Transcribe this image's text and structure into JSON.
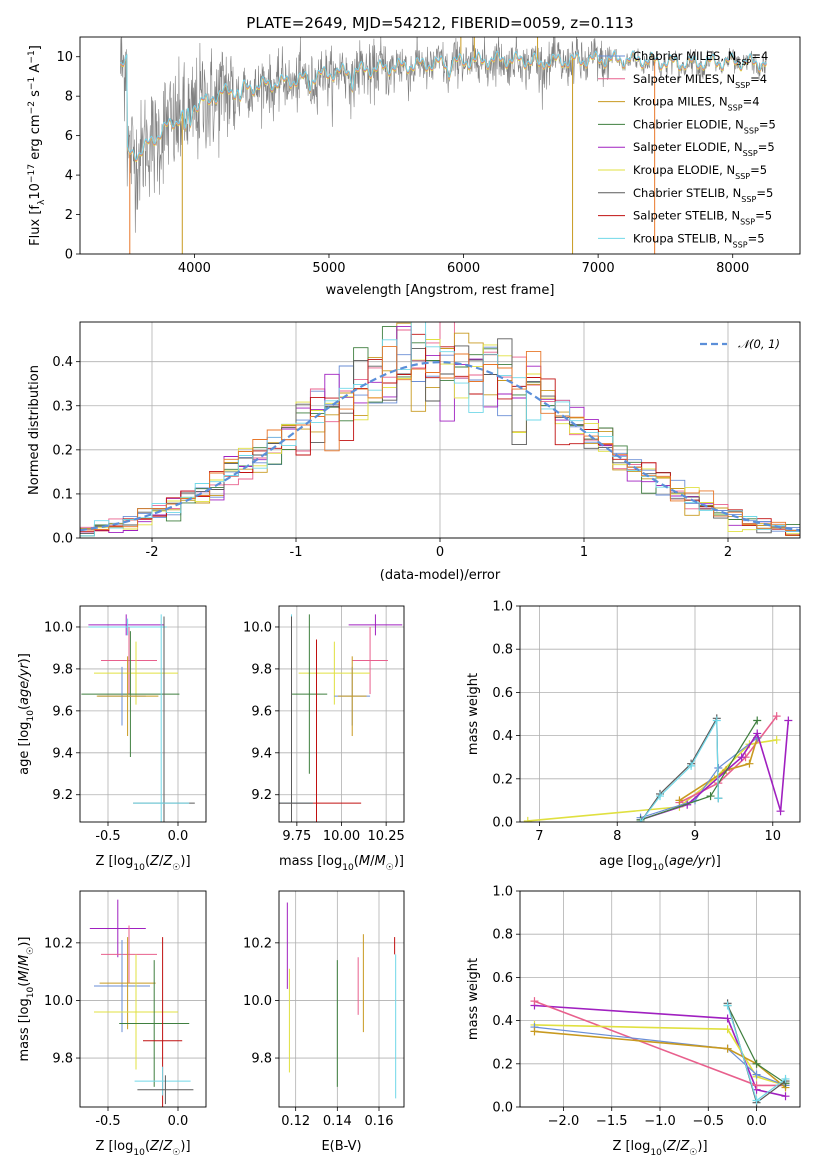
{
  "figure": {
    "title": "PLATE=2649, MJD=54212, FIBERID=0059, z=0.113"
  },
  "colors": {
    "Chabrier MILES": "#6a8ed6",
    "Salpeter MILES": "#e8608d",
    "Kroupa MILES": "#c89a20",
    "Chabrier ELODIE": "#3f7f3f",
    "Salpeter ELODIE": "#a020c0",
    "Kroupa ELODIE": "#e0e040",
    "Chabrier STELIB": "#5a5a5a",
    "Salpeter STELIB": "#c01010",
    "Kroupa STELIB": "#70d8e8",
    "orange": "#e8772a",
    "pink": "#e880b8",
    "olive": "#b8d850",
    "normal_curve": "#5b8fd9",
    "grid": "#b0b0b0"
  },
  "chart_data": [
    {
      "id": "spectrum",
      "type": "line",
      "title": "PLATE=2649, MJD=54212, FIBERID=0059, z=0.113",
      "xlabel": "wavelength [Angstrom, rest frame]",
      "ylabel": "Flux [f_λ 10^-17 erg cm^-2 s^-1 A^-1]",
      "xlim": [
        3150,
        8500
      ],
      "ylim": [
        0,
        11
      ],
      "xticks": [
        4000,
        5000,
        6000,
        7000,
        8000
      ],
      "yticks": [
        0,
        2,
        4,
        6,
        8,
        10
      ],
      "grid": false,
      "legend_position": "top-right",
      "legend": [
        {
          "label": "Chabrier MILES",
          "nssp": "4"
        },
        {
          "label": "Salpeter MILES",
          "nssp": "4"
        },
        {
          "label": "Kroupa MILES",
          "nssp": "4"
        },
        {
          "label": "Chabrier ELODIE",
          "nssp": "5"
        },
        {
          "label": "Salpeter ELODIE",
          "nssp": "5"
        },
        {
          "label": "Kroupa ELODIE",
          "nssp": "5"
        },
        {
          "label": "Chabrier STELIB",
          "nssp": "5"
        },
        {
          "label": "Salpeter STELIB",
          "nssp": "5"
        },
        {
          "label": "Kroupa STELIB",
          "nssp": "5"
        }
      ],
      "continuum": {
        "x": [
          3500,
          3600,
          3700,
          3800,
          3900,
          4000,
          4200,
          4500,
          4800,
          5000,
          5300,
          5600,
          6000,
          6300,
          6600,
          7000,
          7300,
          7600,
          8000,
          8250
        ],
        "y": [
          5.0,
          5.1,
          5.8,
          6.4,
          6.9,
          7.5,
          8.1,
          8.5,
          8.8,
          9.1,
          9.3,
          9.5,
          9.7,
          9.8,
          9.7,
          9.8,
          9.8,
          9.6,
          9.7,
          9.6
        ]
      },
      "data_range": [
        3450,
        8250
      ],
      "model_range": [
        3450,
        8250
      ]
    },
    {
      "id": "residual-hist",
      "type": "step",
      "xlabel": "(data-model)/error",
      "ylabel": "Normed distribution",
      "xlim": [
        -2.5,
        2.5
      ],
      "ylim": [
        0,
        0.49
      ],
      "xticks": [
        -2,
        -1,
        0,
        1,
        2
      ],
      "yticks": [
        0,
        0.1,
        0.2,
        0.3,
        0.4
      ],
      "grid": true,
      "legend_position": "top-right",
      "legend": [
        {
          "label": "𝒩(0, 1)"
        }
      ],
      "bin_width": 0.1
    },
    {
      "id": "age-vs-Z",
      "type": "errorbar",
      "xlabel": "Z [log10(Z/Z☉)]",
      "ylabel": "age [log10(age/yr)]",
      "xlim": [
        -0.7,
        0.2
      ],
      "ylim": [
        9.07,
        10.1
      ],
      "xticks": [
        -0.5,
        0.0
      ],
      "yticks": [
        9.2,
        9.4,
        9.6,
        9.8,
        10.0
      ],
      "grid": true,
      "points": [
        {
          "series": "Salpeter ELODIE",
          "x": -0.37,
          "xerr": 0.27,
          "y": 10.01,
          "yerr": 0.05
        },
        {
          "series": "Kroupa STELIB",
          "x": -0.36,
          "xerr": 0.28,
          "y": 10.0,
          "yerr": 0.04
        },
        {
          "series": "Salpeter MILES",
          "x": -0.35,
          "xerr": 0.2,
          "y": 9.84,
          "yerr": 0.16
        },
        {
          "series": "Kroupa ELODIE",
          "x": -0.3,
          "xerr": 0.3,
          "y": 9.78,
          "yerr": 0.15
        },
        {
          "series": "Chabrier ELODIE",
          "x": -0.34,
          "xerr": 0.35,
          "y": 9.68,
          "yerr": 0.3
        },
        {
          "series": "Chabrier MILES",
          "x": -0.4,
          "xerr": 0.17,
          "y": 9.67,
          "yerr": 0.14
        },
        {
          "series": "Kroupa MILES",
          "x": -0.36,
          "xerr": 0.22,
          "y": 9.67,
          "yerr": 0.19
        },
        {
          "series": "Chabrier STELIB",
          "x": -0.1,
          "xerr": 0.22,
          "y": 9.16,
          "yerr": 0.89
        },
        {
          "series": "Kroupa STELIB",
          "x": -0.12,
          "xerr": 0.2,
          "y": 9.16,
          "yerr": 0.9
        }
      ]
    },
    {
      "id": "age-vs-mass",
      "type": "errorbar",
      "xlabel": "mass [log10(M/M☉)]",
      "ylabel": "",
      "xlim": [
        9.65,
        10.35
      ],
      "ylim": [
        9.07,
        10.1
      ],
      "xticks": [
        9.75,
        10.0,
        10.25
      ],
      "yticks": [
        9.2,
        9.4,
        9.6,
        9.8,
        10.0
      ],
      "grid": true,
      "points": [
        {
          "series": "Salpeter ELODIE",
          "x": 10.19,
          "xerr": 0.15,
          "y": 10.01,
          "yerr": 0.05
        },
        {
          "series": "Salpeter MILES",
          "x": 10.16,
          "xerr": 0.1,
          "y": 9.84,
          "yerr": 0.16
        },
        {
          "series": "Kroupa ELODIE",
          "x": 9.96,
          "xerr": 0.2,
          "y": 9.78,
          "yerr": 0.15
        },
        {
          "series": "Chabrier ELODIE",
          "x": 9.82,
          "xerr": 0.1,
          "y": 9.68,
          "yerr": 0.38
        },
        {
          "series": "Chabrier MILES",
          "x": 10.06,
          "xerr": 0.1,
          "y": 9.67,
          "yerr": 0.14
        },
        {
          "series": "Kroupa MILES",
          "x": 10.06,
          "xerr": 0.08,
          "y": 9.67,
          "yerr": 0.19
        },
        {
          "series": "Salpeter STELIB",
          "x": 9.86,
          "xerr": 0.25,
          "y": 9.16,
          "yerr": 0.78
        },
        {
          "series": "Kroupa STELIB",
          "x": 9.72,
          "xerr": 0.12,
          "y": 9.16,
          "yerr": 0.9
        },
        {
          "series": "Chabrier STELIB",
          "x": 9.72,
          "xerr": 0.12,
          "y": 9.16,
          "yerr": 0.89
        }
      ]
    },
    {
      "id": "massweight-vs-age",
      "type": "line",
      "xlabel": "age [log10(age/yr)]",
      "ylabel": "mass weight",
      "xlim": [
        6.75,
        10.35
      ],
      "ylim": [
        0,
        1.0
      ],
      "xticks": [
        7,
        8,
        9,
        10
      ],
      "yticks": [
        0.0,
        0.2,
        0.4,
        0.6,
        0.8,
        1.0
      ],
      "grid": true,
      "series": [
        {
          "name": "Kroupa ELODIE",
          "x": [
            6.85,
            8.8,
            9.25,
            9.7,
            10.05
          ],
          "y": [
            0.005,
            0.07,
            0.2,
            0.36,
            0.38
          ]
        },
        {
          "name": "Salpeter MILES",
          "x": [
            8.8,
            9.3,
            9.65,
            10.05
          ],
          "y": [
            0.09,
            0.18,
            0.3,
            0.49
          ]
        },
        {
          "name": "Kroupa MILES",
          "x": [
            8.8,
            9.4,
            9.7,
            9.8
          ],
          "y": [
            0.1,
            0.24,
            0.27,
            0.39
          ]
        },
        {
          "name": "Chabrier MILES",
          "x": [
            8.3,
            9.0,
            9.3,
            9.8
          ],
          "y": [
            0.02,
            0.1,
            0.25,
            0.39
          ]
        },
        {
          "name": "Salpeter ELODIE",
          "x": [
            8.3,
            8.9,
            9.6,
            9.8,
            10.1,
            10.2
          ],
          "y": [
            0.01,
            0.08,
            0.3,
            0.41,
            0.05,
            0.47
          ]
        },
        {
          "name": "Chabrier ELODIE",
          "x": [
            8.3,
            9.2,
            9.8
          ],
          "y": [
            0.01,
            0.12,
            0.47
          ]
        },
        {
          "name": "Chabrier STELIB",
          "x": [
            8.3,
            8.55,
            8.95,
            9.28,
            9.3
          ],
          "y": [
            0.0,
            0.13,
            0.27,
            0.48,
            0.11
          ]
        },
        {
          "name": "Kroupa STELIB",
          "x": [
            8.3,
            8.55,
            8.95,
            9.28,
            9.3
          ],
          "y": [
            0.0,
            0.12,
            0.26,
            0.47,
            0.11
          ]
        }
      ]
    },
    {
      "id": "mass-vs-Z",
      "type": "errorbar",
      "xlabel": "Z [log10(Z/Z☉)]",
      "ylabel": "mass [log10(M/M☉)]",
      "xlim": [
        -0.7,
        0.2
      ],
      "ylim": [
        9.63,
        10.38
      ],
      "xticks": [
        -0.5,
        0.0
      ],
      "yticks": [
        9.8,
        10.0,
        10.2
      ],
      "grid": true,
      "points": [
        {
          "series": "Salpeter ELODIE",
          "x": -0.43,
          "xerr": 0.2,
          "y": 10.25,
          "yerr": 0.1
        },
        {
          "series": "Salpeter MILES",
          "x": -0.35,
          "xerr": 0.2,
          "y": 10.16,
          "yerr": 0.1
        },
        {
          "series": "Chabrier MILES",
          "x": -0.4,
          "xerr": 0.2,
          "y": 10.05,
          "yerr": 0.16
        },
        {
          "series": "Kroupa MILES",
          "x": -0.36,
          "xerr": 0.2,
          "y": 10.06,
          "yerr": 0.16
        },
        {
          "series": "Kroupa ELODIE",
          "x": -0.3,
          "xerr": 0.3,
          "y": 9.96,
          "yerr": 0.2
        },
        {
          "series": "Chabrier ELODIE",
          "x": -0.17,
          "xerr": 0.25,
          "y": 9.92,
          "yerr": 0.22
        },
        {
          "series": "Salpeter STELIB",
          "x": -0.11,
          "xerr": 0.14,
          "y": 9.86,
          "yerr": 0.36
        },
        {
          "series": "Kroupa STELIB",
          "x": -0.11,
          "xerr": 0.2,
          "y": 9.72,
          "yerr": 0.05
        },
        {
          "series": "Chabrier STELIB",
          "x": -0.09,
          "xerr": 0.2,
          "y": 9.69,
          "yerr": 0.05
        }
      ]
    },
    {
      "id": "mass-vs-EBV",
      "type": "errorbar",
      "xlabel": "E(B-V)",
      "ylabel": "",
      "xlim": [
        0.112,
        0.172
      ],
      "ylim": [
        9.63,
        10.38
      ],
      "xticks": [
        0.12,
        0.14,
        0.16
      ],
      "yticks": [
        9.8,
        10.0,
        10.2
      ],
      "grid": true,
      "points": [
        {
          "series": "Salpeter ELODIE",
          "x": 0.116,
          "y": 10.19,
          "yerr": 0.15
        },
        {
          "series": "Kroupa ELODIE",
          "x": 0.117,
          "y": 9.93,
          "yerr": 0.18
        },
        {
          "series": "Chabrier ELODIE",
          "x": 0.14,
          "y": 9.92,
          "yerr": 0.22
        },
        {
          "series": "Salpeter MILES",
          "x": 0.15,
          "y": 10.05,
          "yerr": 0.1
        },
        {
          "series": "Kroupa MILES",
          "x": 0.1525,
          "y": 10.06,
          "yerr": 0.17
        },
        {
          "series": "Salpeter STELIB",
          "x": 0.1675,
          "y": 10.19,
          "yerr": 0.03
        },
        {
          "series": "Kroupa STELIB",
          "x": 0.168,
          "y": 9.91,
          "yerr": 0.25
        }
      ]
    },
    {
      "id": "massweight-vs-Z",
      "type": "line",
      "xlabel": "Z [log10(Z/Z☉)]",
      "ylabel": "mass weight",
      "xlim": [
        -2.45,
        0.45
      ],
      "ylim": [
        0,
        1.0
      ],
      "xticks": [
        -2.0,
        -1.5,
        -1.0,
        -0.5,
        0.0
      ],
      "yticks": [
        0.0,
        0.2,
        0.4,
        0.6,
        0.8,
        1.0
      ],
      "grid": true,
      "series": [
        {
          "name": "Salpeter ELODIE",
          "x": [
            -2.3,
            -0.3,
            0.0,
            0.3
          ],
          "y": [
            0.47,
            0.41,
            0.08,
            0.05
          ]
        },
        {
          "name": "Salpeter MILES",
          "x": [
            -2.3,
            0.0,
            0.3
          ],
          "y": [
            0.49,
            0.1,
            0.1
          ]
        },
        {
          "name": "Kroupa ELODIE",
          "x": [
            -2.3,
            -0.3,
            0.0,
            0.3
          ],
          "y": [
            0.38,
            0.36,
            0.14,
            0.1
          ]
        },
        {
          "name": "Chabrier MILES",
          "x": [
            -2.3,
            -0.3,
            0.0,
            0.3
          ],
          "y": [
            0.37,
            0.27,
            0.15,
            0.1
          ]
        },
        {
          "name": "Kroupa MILES",
          "x": [
            -2.3,
            -0.3,
            0.0,
            0.3
          ],
          "y": [
            0.35,
            0.27,
            0.2,
            0.09
          ]
        },
        {
          "name": "Chabrier ELODIE",
          "x": [
            -0.3,
            0.0,
            0.3
          ],
          "y": [
            0.47,
            0.2,
            0.11
          ]
        },
        {
          "name": "Chabrier STELIB",
          "x": [
            -0.3,
            0.0,
            0.3
          ],
          "y": [
            0.48,
            0.02,
            0.12
          ]
        },
        {
          "name": "Kroupa STELIB",
          "x": [
            -0.3,
            0.0,
            0.3
          ],
          "y": [
            0.47,
            0.03,
            0.13
          ]
        }
      ]
    }
  ]
}
